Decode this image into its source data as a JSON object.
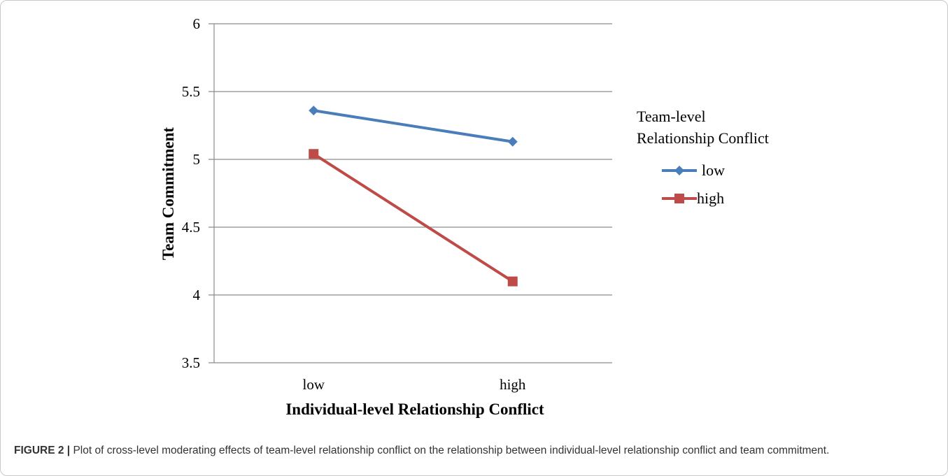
{
  "chart_data": {
    "type": "line",
    "categories": [
      "low",
      "high"
    ],
    "xlabel": "Individual-level Relationship Conflict",
    "ylabel": "Team Commitment",
    "ylim": [
      3.5,
      6
    ],
    "yticks": [
      "3.5",
      "4",
      "4.5",
      "5",
      "5.5",
      "6"
    ],
    "grid": true,
    "legend": {
      "title": [
        "Team-level",
        "Relationship Conflict"
      ],
      "placement": "right"
    },
    "series": [
      {
        "name": "low",
        "values": [
          5.36,
          5.13
        ],
        "color": "#4a7ebb",
        "marker": "diamond"
      },
      {
        "name": "high",
        "values": [
          5.04,
          4.1
        ],
        "color": "#be4b48",
        "marker": "square"
      }
    ]
  },
  "caption": {
    "label": "FIGURE 2 |",
    "text": "Plot of cross-level moderating effects of team-level relationship conflict on the relationship between individual-level relationship conflict and team commitment."
  }
}
